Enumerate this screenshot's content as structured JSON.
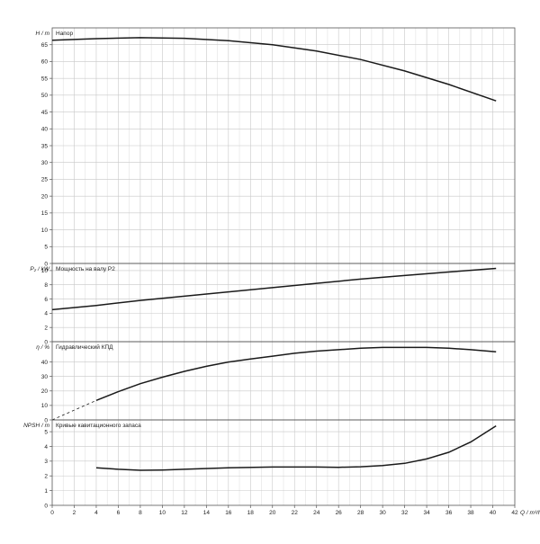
{
  "chart_data": [
    {
      "type": "line",
      "title": "Напор",
      "ylabel": "H / m",
      "xlim": [
        0,
        42
      ],
      "ylim": [
        0,
        70
      ],
      "ytick_labels": [
        "0",
        "5",
        "10",
        "15",
        "20",
        "25",
        "30",
        "35",
        "40",
        "45",
        "50",
        "55",
        "60",
        "65"
      ],
      "ytick_values": [
        0,
        5,
        10,
        15,
        20,
        25,
        30,
        35,
        40,
        45,
        50,
        55,
        60,
        65
      ],
      "grid": true,
      "series": [
        {
          "x": [
            0,
            4,
            8,
            12,
            16,
            20,
            24,
            28,
            32,
            36,
            40.3
          ],
          "y": [
            66.3,
            66.8,
            67.1,
            66.9,
            66.2,
            65.0,
            63.1,
            60.6,
            57.2,
            53.2,
            48.3
          ]
        }
      ]
    },
    {
      "type": "line",
      "title": "Мощность на валу P2",
      "ylabel": "P₂ / kW",
      "xlim": [
        0,
        42
      ],
      "ylim": [
        0,
        11
      ],
      "ytick_labels": [
        "0",
        "2",
        "4",
        "6",
        "8",
        "10"
      ],
      "ytick_values": [
        0,
        2,
        4,
        6,
        8,
        10
      ],
      "grid": true,
      "series": [
        {
          "x": [
            0,
            4,
            8,
            12,
            16,
            20,
            24,
            28,
            32,
            36,
            40.3
          ],
          "y": [
            4.5,
            5.1,
            5.8,
            6.4,
            7.0,
            7.6,
            8.2,
            8.8,
            9.3,
            9.8,
            10.3
          ]
        }
      ]
    },
    {
      "type": "line",
      "title": "Гидравлический КПД",
      "ylabel": "η / %",
      "xlim": [
        0,
        42
      ],
      "ylim": [
        0,
        54
      ],
      "ytick_labels": [
        "0",
        "10",
        "20",
        "30",
        "40"
      ],
      "ytick_values": [
        0,
        10,
        20,
        30,
        40
      ],
      "grid": true,
      "series": [
        {
          "x": [
            4,
            6,
            8,
            10,
            12,
            14,
            16,
            18,
            20,
            22,
            24,
            26,
            28,
            30,
            32,
            34,
            36,
            38,
            40.3
          ],
          "y": [
            13.5,
            19.5,
            25.0,
            29.5,
            33.5,
            37.0,
            40.0,
            42.0,
            44.0,
            46.0,
            47.5,
            48.5,
            49.5,
            50.0,
            50.0,
            50.0,
            49.5,
            48.5,
            47.0
          ]
        },
        {
          "style": "dashed",
          "x": [
            0,
            4
          ],
          "y": [
            0,
            13.5
          ]
        }
      ]
    },
    {
      "type": "line",
      "title": "Кривые кавитационного запаса",
      "ylabel": "NPSH / m",
      "xlim": [
        0,
        42
      ],
      "ylim": [
        0,
        5.8
      ],
      "ytick_labels": [
        "0",
        "1",
        "2",
        "3",
        "4",
        "5"
      ],
      "ytick_values": [
        0,
        1,
        2,
        3,
        4,
        5
      ],
      "grid": true,
      "series": [
        {
          "x": [
            4,
            6,
            8,
            10,
            12,
            16,
            20,
            24,
            26,
            28,
            30,
            32,
            34,
            36,
            38,
            40.3
          ],
          "y": [
            2.55,
            2.45,
            2.38,
            2.4,
            2.45,
            2.55,
            2.6,
            2.6,
            2.58,
            2.62,
            2.7,
            2.85,
            3.15,
            3.6,
            4.3,
            5.4
          ]
        }
      ]
    }
  ],
  "x_axis": {
    "label": "Q / m³/h",
    "ticks": [
      "0",
      "2",
      "4",
      "6",
      "8",
      "10",
      "12",
      "14",
      "16",
      "18",
      "20",
      "22",
      "24",
      "26",
      "28",
      "30",
      "32",
      "34",
      "36",
      "38",
      "40",
      "42"
    ]
  },
  "colors": {
    "line": "#1a1a1a",
    "grid": "#c8c8c8",
    "frame": "#555555"
  }
}
